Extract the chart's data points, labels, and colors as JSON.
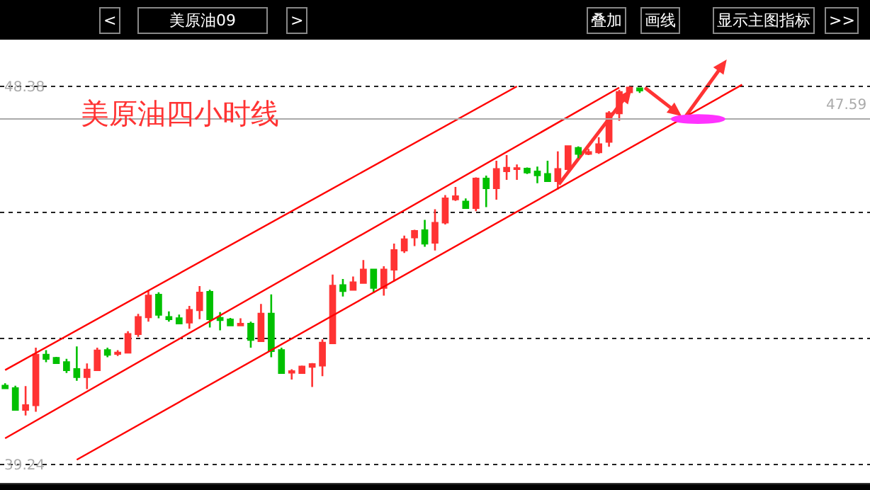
{
  "chart_data": {
    "type": "candlestick",
    "title": "美原油四小时线",
    "subtitle": "美原油09",
    "annotations": [
      "<",
      ">",
      "叠加",
      "画线",
      "显示主图指标",
      ">>"
    ],
    "categories": [
      null,
      null,
      null,
      null,
      null,
      null,
      null,
      null,
      null,
      null,
      null,
      null,
      null,
      null,
      null,
      null,
      null,
      null,
      null,
      null,
      null,
      null,
      null,
      null,
      null,
      null,
      null,
      null,
      null,
      null,
      null,
      null,
      null,
      null,
      null,
      null,
      null,
      null,
      null,
      null,
      null,
      null,
      null,
      null,
      null,
      null,
      null,
      null,
      null,
      null,
      null,
      null,
      null,
      null,
      null,
      null,
      null,
      null,
      null,
      null,
      null,
      null,
      null,
      null,
      null,
      null,
      null,
      null,
      null,
      null,
      null,
      null,
      null,
      null,
      null,
      null,
      null,
      null,
      null,
      null,
      null,
      null,
      null,
      null,
      null
    ],
    "ylim": [
      38.79,
      49.51
    ],
    "yticks": [
      48.38,
      {
        "value": 45.33,
        "label": null
      },
      {
        "value": 42.29,
        "label": null
      },
      39.24
    ],
    "tick_labels": "y",
    "grid": "y",
    "ref_lines": [
      {
        "axis": "y",
        "value": 47.59,
        "label": "47.59",
        "color": "#aaaaaa"
      }
    ],
    "series": [
      {
        "colors": [
          "#00c000",
          "#00c000",
          "#ff3333",
          "#ff3333",
          "#00c000",
          "#00c000",
          "#00c000",
          "#00c000",
          "#ff3333",
          "#ff3333",
          "#00c000",
          "#ff3333",
          "#ff3333",
          "#ff3333",
          "#ff3333",
          "#00c000",
          "#00c000",
          "#00c000",
          "#ff3333",
          "#ff3333",
          "#00c000",
          "#00c000",
          "#00c000",
          "#ff3333",
          "#00c000",
          "#ff3333",
          "#00c000",
          "#00c000",
          "#ff3333",
          "#ff3333",
          "#ff3333",
          "#ff3333",
          "#ff3333",
          "#00c000",
          "#ff3333",
          "#ff3333",
          "#00c000",
          "#ff3333",
          "#ff3333",
          "#ff3333",
          "#ff3333",
          "#00c000",
          "#ff3333",
          "#ff3333",
          "#ff3333",
          "#00c000",
          "#ff3333",
          "#00c000",
          "#ff3333",
          "#ff3333",
          "#ff3333",
          "#00c000",
          "#00c000",
          "#00c000",
          "#ff3333",
          "#ff3333",
          "#00c000",
          "#ff3333",
          "#ff3333",
          "#ff3333",
          "#ff3333",
          "#ff3333",
          "#00c000",
          null,
          null,
          null,
          null,
          null,
          null,
          null,
          null,
          null,
          null,
          null,
          null,
          null,
          null,
          null,
          null,
          null,
          null,
          null,
          null,
          null,
          null
        ],
        "ohlc": [
          [
            41.14,
            41.2,
            41.06,
            41.08
          ],
          [
            41.08,
            41.14,
            40.56,
            40.56
          ],
          [
            40.56,
            41.13,
            40.42,
            40.67
          ],
          [
            40.67,
            42.06,
            40.51,
            41.89
          ],
          [
            41.89,
            42.0,
            41.71,
            41.79
          ],
          [
            41.81,
            41.84,
            41.69,
            41.69
          ],
          [
            41.71,
            41.79,
            41.45,
            41.52
          ],
          [
            41.54,
            42.09,
            41.26,
            41.35
          ],
          [
            41.35,
            41.68,
            41.06,
            41.53
          ],
          [
            41.52,
            42.06,
            41.52,
            41.99
          ],
          [
            42.0,
            42.06,
            41.83,
            41.89
          ],
          [
            41.91,
            42.0,
            41.86,
            41.94
          ],
          [
            41.94,
            42.46,
            41.94,
            42.39
          ],
          [
            42.39,
            42.88,
            42.32,
            42.8
          ],
          [
            42.8,
            43.43,
            42.69,
            43.32
          ],
          [
            43.34,
            43.4,
            42.77,
            42.86
          ],
          [
            42.8,
            42.94,
            42.69,
            42.75
          ],
          [
            42.77,
            42.86,
            42.63,
            42.65
          ],
          [
            42.67,
            43.07,
            42.52,
            42.97
          ],
          [
            42.97,
            43.55,
            42.75,
            43.39
          ],
          [
            43.41,
            43.46,
            42.55,
            42.75
          ],
          [
            42.78,
            42.92,
            42.48,
            42.73
          ],
          [
            42.74,
            42.78,
            42.6,
            42.6
          ],
          [
            42.6,
            42.77,
            42.6,
            42.64
          ],
          [
            42.64,
            42.69,
            42.06,
            42.25
          ],
          [
            42.22,
            43.12,
            42.22,
            42.88
          ],
          [
            42.88,
            43.35,
            41.83,
            41.98
          ],
          [
            42.0,
            42.06,
            41.43,
            41.45
          ],
          [
            41.46,
            41.54,
            41.29,
            41.49
          ],
          [
            41.45,
            41.63,
            41.43,
            41.6
          ],
          [
            41.6,
            41.69,
            41.11,
            41.66
          ],
          [
            41.63,
            42.26,
            41.37,
            42.18
          ],
          [
            42.17,
            43.83,
            42.17,
            43.56
          ],
          [
            43.57,
            43.72,
            43.3,
            43.43
          ],
          [
            43.46,
            43.78,
            43.46,
            43.64
          ],
          [
            43.63,
            44.18,
            43.63,
            43.95
          ],
          [
            43.95,
            43.95,
            43.38,
            43.51
          ],
          [
            43.51,
            44.03,
            43.32,
            43.95
          ],
          [
            43.95,
            44.58,
            43.66,
            44.42
          ],
          [
            44.41,
            44.77,
            44.35,
            44.68
          ],
          [
            44.73,
            44.91,
            44.52,
            44.88
          ],
          [
            44.9,
            45.15,
            44.5,
            44.58
          ],
          [
            44.6,
            45.41,
            44.41,
            45.08
          ],
          [
            45.09,
            45.75,
            45.04,
            45.67
          ],
          [
            45.65,
            45.95,
            45.61,
            45.72
          ],
          [
            45.59,
            45.67,
            45.44,
            45.44
          ],
          [
            45.44,
            46.18,
            45.36,
            46.15
          ],
          [
            46.15,
            46.22,
            45.46,
            45.92
          ],
          [
            45.92,
            46.58,
            45.64,
            46.38
          ],
          [
            46.33,
            46.72,
            46.12,
            46.41
          ],
          [
            46.38,
            46.49,
            46.12,
            46.4
          ],
          [
            46.39,
            46.42,
            46.26,
            46.3
          ],
          [
            46.32,
            46.44,
            46.04,
            46.23
          ],
          [
            46.26,
            46.58,
            46.07,
            46.09
          ],
          [
            46.09,
            46.81,
            45.89,
            46.38
          ],
          [
            46.38,
            46.95,
            46.35,
            46.93
          ],
          [
            46.89,
            46.93,
            46.64,
            46.75
          ],
          [
            46.75,
            46.87,
            46.72,
            46.79
          ],
          [
            46.79,
            47.15,
            46.75,
            46.98
          ],
          [
            47.04,
            47.78,
            46.92,
            47.73
          ],
          [
            47.73,
            48.3,
            47.55,
            48.24
          ],
          [
            48.24,
            48.38,
            48.24,
            48.35
          ],
          [
            48.33,
            48.33,
            48.22,
            48.28
          ],
          null,
          null,
          null,
          null,
          null,
          null,
          null,
          null,
          null,
          null,
          null,
          null,
          null,
          null,
          null,
          null,
          null,
          null,
          null,
          null,
          null,
          null
        ]
      },
      {
        "type": "line",
        "color": "#ff0000",
        "values": [
          41.52,
          null,
          null,
          null,
          null,
          null,
          null,
          null,
          null,
          null,
          null,
          null,
          null,
          null,
          null,
          null,
          null,
          null,
          null,
          null,
          null,
          null,
          null,
          null,
          null,
          null,
          null,
          null,
          null,
          null,
          null,
          null,
          null,
          null,
          null,
          null,
          null,
          null,
          null,
          null,
          null,
          null,
          null,
          null,
          null,
          null,
          null,
          null,
          null,
          null,
          48.38,
          null,
          null,
          null,
          null,
          null,
          null,
          null,
          null,
          null,
          null,
          null,
          null,
          null,
          null,
          null,
          null,
          null,
          null,
          null,
          null,
          null,
          null,
          null,
          null,
          null,
          null,
          null,
          null,
          null,
          null,
          null,
          null,
          null,
          null
        ]
      },
      {
        "type": "line",
        "color": "#ff0000",
        "values": [
          39.87,
          null,
          null,
          null,
          null,
          null,
          null,
          null,
          null,
          null,
          null,
          null,
          null,
          null,
          null,
          null,
          null,
          null,
          null,
          null,
          null,
          null,
          null,
          null,
          null,
          null,
          null,
          null,
          null,
          null,
          null,
          null,
          null,
          null,
          null,
          null,
          null,
          null,
          null,
          null,
          null,
          null,
          null,
          null,
          null,
          null,
          null,
          null,
          null,
          null,
          null,
          null,
          null,
          null,
          null,
          null,
          null,
          null,
          null,
          null,
          48.35,
          null,
          null,
          null,
          null,
          null,
          null,
          null,
          null,
          null,
          null,
          null,
          null,
          null,
          null,
          null,
          null,
          null,
          null,
          null,
          null,
          null,
          null,
          null,
          null
        ]
      },
      {
        "type": "line",
        "color": "#ff0000",
        "values": [
          null,
          null,
          null,
          null,
          null,
          null,
          null,
          39.35,
          null,
          null,
          null,
          null,
          null,
          null,
          null,
          null,
          null,
          null,
          null,
          null,
          null,
          null,
          null,
          null,
          null,
          null,
          null,
          null,
          null,
          null,
          null,
          null,
          null,
          null,
          null,
          null,
          null,
          null,
          null,
          null,
          null,
          null,
          null,
          null,
          null,
          null,
          null,
          null,
          null,
          null,
          null,
          null,
          null,
          null,
          null,
          null,
          null,
          null,
          null,
          null,
          null,
          null,
          null,
          null,
          null,
          null,
          null,
          null,
          null,
          null,
          null,
          null,
          48.42,
          null,
          null,
          null,
          null,
          null,
          null,
          null,
          null,
          null,
          null,
          null,
          null
        ]
      }
    ]
  }
}
